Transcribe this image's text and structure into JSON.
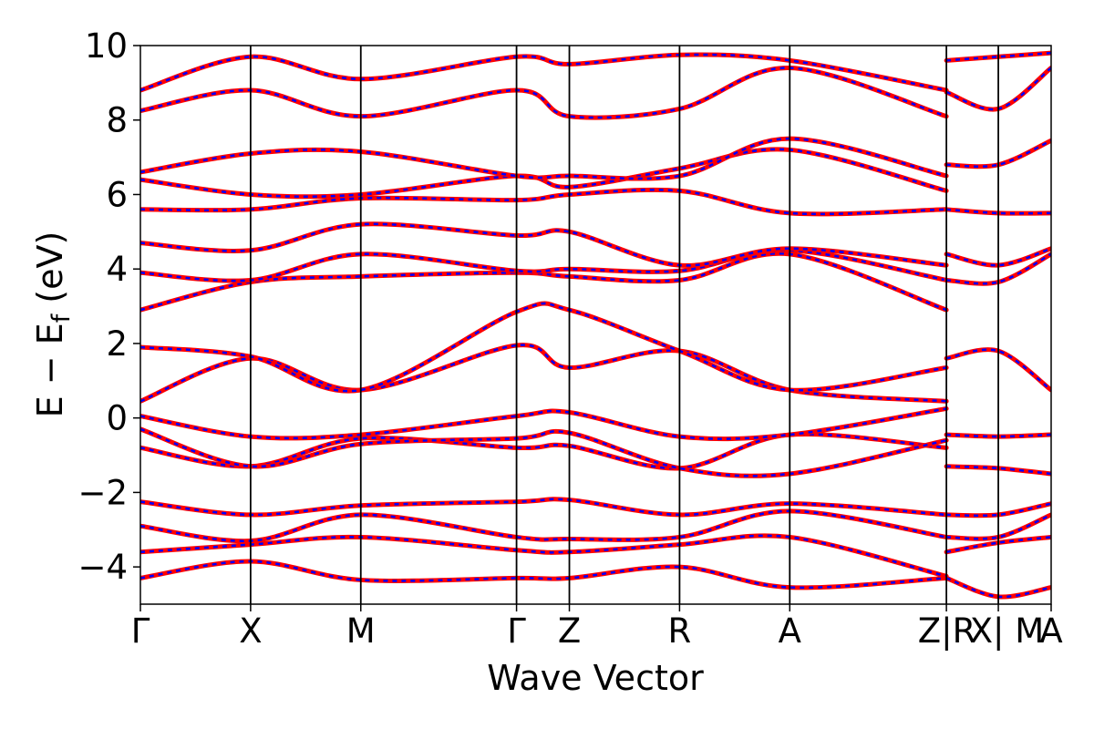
{
  "chart_data": {
    "type": "line",
    "title": "",
    "xlabel": "Wave Vector",
    "ylabel": "E − E_f (eV)",
    "ylabel_parts": {
      "main": "E − E",
      "sub": "f",
      "unit": " (eV)"
    },
    "ylim": [
      -5,
      10
    ],
    "xlim": [
      0,
      1
    ],
    "yticks": [
      -4,
      -2,
      0,
      2,
      4,
      6,
      8,
      10
    ],
    "ytick_labels": [
      "−4",
      "−2",
      "0",
      "2",
      "4",
      "6",
      "8",
      "10"
    ],
    "grid": false,
    "legend": "none",
    "kpoints": [
      {
        "label": "Γ",
        "x": 0.0
      },
      {
        "label": "X",
        "x": 0.121
      },
      {
        "label": "M",
        "x": 0.242
      },
      {
        "label": "Γ",
        "x": 0.413
      },
      {
        "label": "Z",
        "x": 0.471
      },
      {
        "label": "R",
        "x": 0.592
      },
      {
        "label": "A",
        "x": 0.713
      },
      {
        "label": "Z",
        "x": 0.885
      },
      {
        "label": "|R",
        "x": 0.885
      },
      {
        "label": "X",
        "x": 0.942
      },
      {
        "label": "| M",
        "x": 0.942
      },
      {
        "label": "A",
        "x": 1.0
      }
    ],
    "series": [
      {
        "line_color": "#ff0000",
        "dash_color": "#0000ff",
        "bands": [
          {
            "x": [
              0,
              0.121,
              0.242,
              0.413,
              0.471,
              0.592,
              0.713,
              0.885
            ],
            "y": [
              -4.3,
              -3.85,
              -4.35,
              -4.3,
              -4.3,
              -4.0,
              -4.55,
              -4.3
            ]
          },
          {
            "x": [
              0,
              0.121,
              0.242,
              0.413,
              0.471,
              0.592,
              0.713,
              0.885
            ],
            "y": [
              -3.6,
              -3.4,
              -3.2,
              -3.55,
              -3.6,
              -3.4,
              -3.2,
              -4.25
            ]
          },
          {
            "x": [
              0,
              0.121,
              0.242,
              0.413,
              0.471,
              0.592,
              0.713,
              0.885
            ],
            "y": [
              -2.9,
              -3.3,
              -2.6,
              -3.2,
              -3.25,
              -3.2,
              -2.5,
              -3.2
            ]
          },
          {
            "x": [
              0,
              0.121,
              0.242,
              0.413,
              0.471,
              0.592,
              0.713,
              0.885
            ],
            "y": [
              -2.25,
              -2.6,
              -2.35,
              -2.25,
              -2.2,
              -2.6,
              -2.3,
              -2.6
            ]
          },
          {
            "x": [
              0,
              0.121,
              0.242,
              0.413,
              0.471,
              0.592,
              0.713,
              0.885
            ],
            "y": [
              -0.8,
              -1.3,
              -0.55,
              -0.8,
              -0.75,
              -1.35,
              -0.45,
              -0.8
            ]
          },
          {
            "x": [
              0,
              0.121,
              0.242,
              0.413,
              0.471,
              0.592,
              0.713,
              0.885
            ],
            "y": [
              -0.3,
              -1.3,
              -0.7,
              -0.55,
              -0.4,
              -1.35,
              -1.5,
              -0.6
            ]
          },
          {
            "x": [
              0,
              0.121,
              0.242,
              0.413,
              0.471,
              0.592,
              0.713,
              0.885
            ],
            "y": [
              0.05,
              -0.5,
              -0.45,
              0.05,
              0.15,
              -0.5,
              -0.45,
              0.25
            ]
          },
          {
            "x": [
              0,
              0.121,
              0.242,
              0.413,
              0.471,
              0.592,
              0.713,
              0.885
            ],
            "y": [
              0.45,
              1.6,
              0.75,
              1.95,
              1.35,
              1.8,
              0.75,
              0.45
            ]
          },
          {
            "x": [
              0,
              0.121,
              0.242,
              0.413,
              0.471,
              0.592,
              0.713,
              0.885
            ],
            "y": [
              1.9,
              1.65,
              0.75,
              2.85,
              2.9,
              1.8,
              0.75,
              1.35
            ]
          },
          {
            "x": [
              0,
              0.121,
              0.242,
              0.413,
              0.471,
              0.592,
              0.713,
              0.885
            ],
            "y": [
              2.9,
              3.65,
              3.8,
              3.9,
              3.8,
              3.7,
              4.4,
              2.9
            ]
          },
          {
            "x": [
              0,
              0.121,
              0.242,
              0.413,
              0.471,
              0.592,
              0.713,
              0.885
            ],
            "y": [
              3.9,
              3.7,
              4.4,
              3.95,
              4.0,
              3.95,
              4.5,
              3.7
            ]
          },
          {
            "x": [
              0,
              0.121,
              0.242,
              0.413,
              0.471,
              0.592,
              0.713,
              0.885
            ],
            "y": [
              4.7,
              4.5,
              5.2,
              4.9,
              5.0,
              4.1,
              4.55,
              4.1
            ]
          },
          {
            "x": [
              0,
              0.121,
              0.242,
              0.413,
              0.471,
              0.592,
              0.713,
              0.885
            ],
            "y": [
              5.6,
              5.6,
              5.9,
              5.85,
              6.0,
              6.1,
              5.5,
              5.6
            ]
          },
          {
            "x": [
              0,
              0.121,
              0.242,
              0.413,
              0.471,
              0.592,
              0.713,
              0.885
            ],
            "y": [
              6.4,
              6.0,
              6.0,
              6.5,
              6.2,
              6.7,
              7.2,
              6.1
            ]
          },
          {
            "x": [
              0,
              0.121,
              0.242,
              0.413,
              0.471,
              0.592,
              0.713,
              0.885
            ],
            "y": [
              6.6,
              7.1,
              7.15,
              6.5,
              6.5,
              6.5,
              7.5,
              6.5
            ]
          },
          {
            "x": [
              0,
              0.121,
              0.242,
              0.413,
              0.471,
              0.592,
              0.713,
              0.885
            ],
            "y": [
              8.25,
              8.8,
              8.1,
              8.8,
              8.1,
              8.3,
              9.4,
              8.1
            ]
          },
          {
            "x": [
              0,
              0.121,
              0.242,
              0.413,
              0.471,
              0.592,
              0.713,
              0.885
            ],
            "y": [
              8.8,
              9.7,
              9.1,
              9.7,
              9.5,
              9.75,
              9.6,
              8.8
            ]
          },
          {
            "x": [
              0.885,
              0.942,
              1.0
            ],
            "y": [
              -4.3,
              -4.8,
              -4.55
            ]
          },
          {
            "x": [
              0.885,
              0.942,
              1.0
            ],
            "y": [
              -3.6,
              -3.35,
              -3.2
            ]
          },
          {
            "x": [
              0.885,
              0.942,
              1.0
            ],
            "y": [
              -3.2,
              -3.2,
              -2.6
            ]
          },
          {
            "x": [
              0.885,
              0.942,
              1.0
            ],
            "y": [
              -2.6,
              -2.6,
              -2.3
            ]
          },
          {
            "x": [
              0.885,
              0.942,
              1.0
            ],
            "y": [
              -1.3,
              -1.35,
              -1.5
            ]
          },
          {
            "x": [
              0.885,
              0.942,
              1.0
            ],
            "y": [
              -0.45,
              -0.5,
              -0.45
            ]
          },
          {
            "x": [
              0.885,
              0.942,
              1.0
            ],
            "y": [
              1.6,
              1.8,
              0.75
            ]
          },
          {
            "x": [
              0.885,
              0.942,
              1.0
            ],
            "y": [
              3.7,
              3.65,
              4.4
            ]
          },
          {
            "x": [
              0.885,
              0.942,
              1.0
            ],
            "y": [
              4.4,
              4.1,
              4.55
            ]
          },
          {
            "x": [
              0.885,
              0.942,
              1.0
            ],
            "y": [
              5.6,
              5.5,
              5.5
            ]
          },
          {
            "x": [
              0.885,
              0.942,
              1.0
            ],
            "y": [
              6.8,
              6.8,
              7.45
            ]
          },
          {
            "x": [
              0.885,
              0.942,
              1.0
            ],
            "y": [
              8.75,
              8.3,
              9.4
            ]
          },
          {
            "x": [
              0.885,
              0.942,
              1.0
            ],
            "y": [
              9.6,
              9.7,
              9.8
            ]
          }
        ]
      }
    ]
  }
}
